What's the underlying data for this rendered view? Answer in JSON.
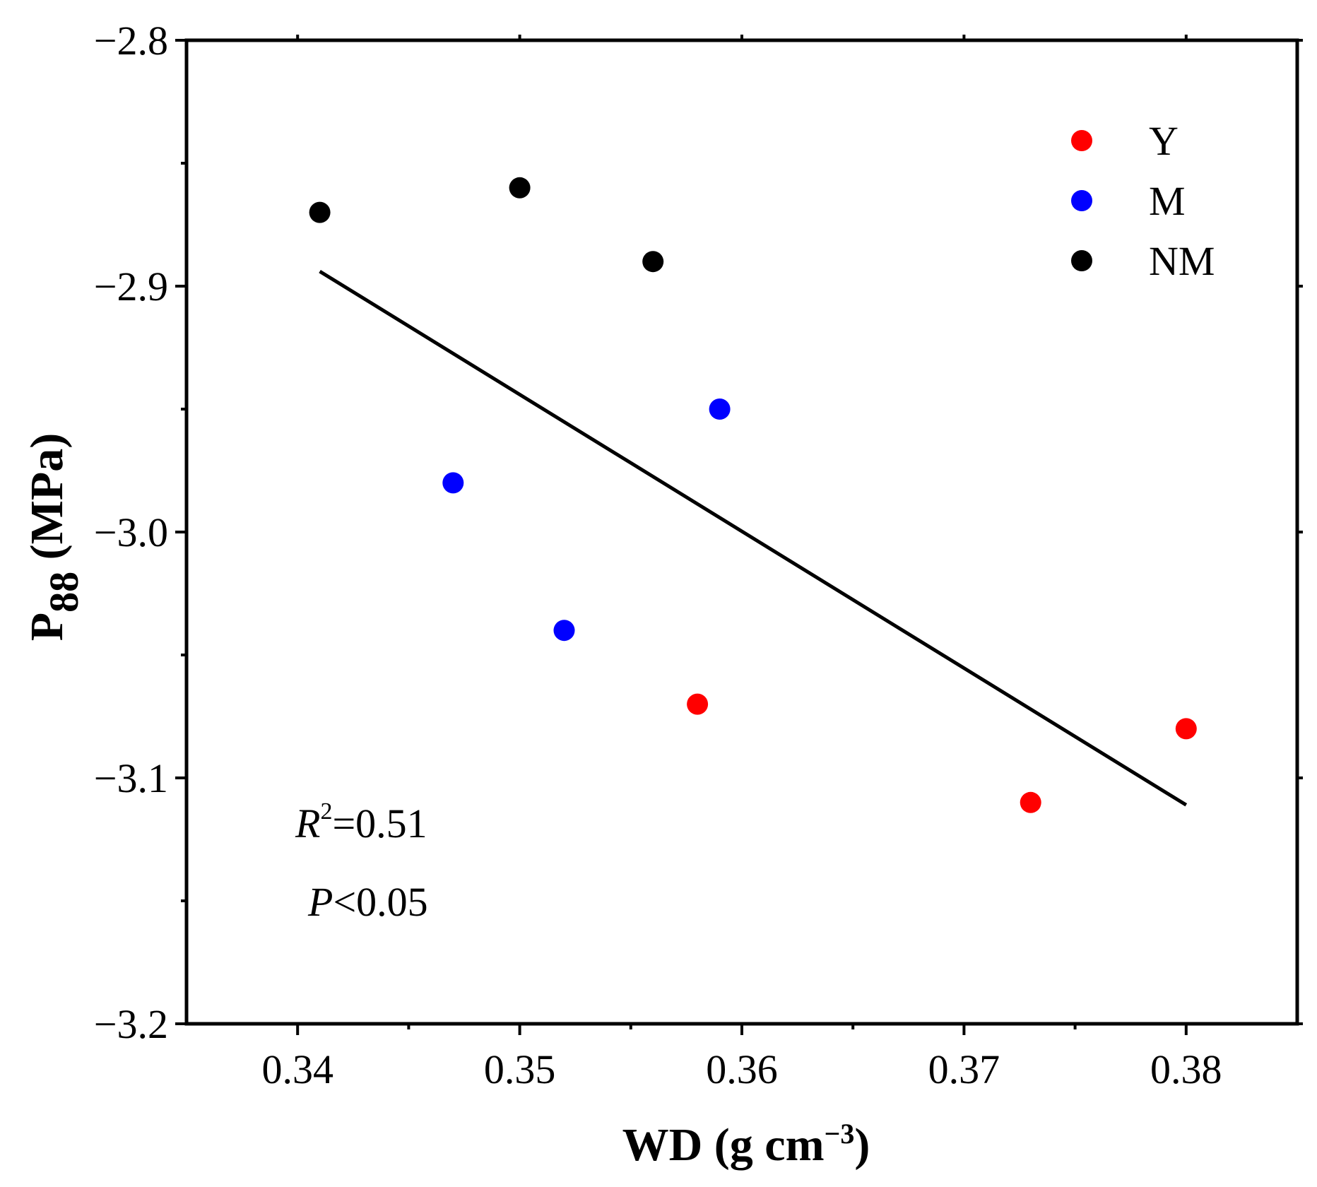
{
  "chart_data": {
    "type": "scatter",
    "title": "",
    "xlabel": {
      "main": "WD (g cm",
      "superscript": "−3",
      "close": ")"
    },
    "ylabel": {
      "main": "P",
      "subscript": "88",
      "unit": " (MPa)"
    },
    "xlim": [
      0.335,
      0.385
    ],
    "ylim": [
      -3.2,
      -2.8
    ],
    "xticks": [
      0.34,
      0.35,
      0.36,
      0.37,
      0.38
    ],
    "xtick_labels": [
      "0.34",
      "0.35",
      "0.36",
      "0.37",
      "0.38"
    ],
    "xminor_ticks": [
      0.345,
      0.355,
      0.365,
      0.375
    ],
    "yticks": [
      -2.8,
      -2.9,
      -3.0,
      -3.1,
      -3.2
    ],
    "ytick_labels": [
      "−2.8",
      "−2.9",
      "−3.0",
      "−3.1",
      "−3.2"
    ],
    "yminor_ticks": [
      -2.85,
      -2.95,
      -3.05,
      -3.15
    ],
    "grid": false,
    "legend_position": "top-right",
    "series": [
      {
        "name": "Y",
        "color": "#ff0000",
        "points": [
          {
            "x": 0.358,
            "y": -3.07
          },
          {
            "x": 0.373,
            "y": -3.11
          },
          {
            "x": 0.38,
            "y": -3.08
          }
        ]
      },
      {
        "name": "M",
        "color": "#0000ff",
        "points": [
          {
            "x": 0.347,
            "y": -2.98
          },
          {
            "x": 0.352,
            "y": -3.04
          },
          {
            "x": 0.359,
            "y": -2.95
          }
        ]
      },
      {
        "name": "NM",
        "color": "#000000",
        "points": [
          {
            "x": 0.341,
            "y": -2.87
          },
          {
            "x": 0.35,
            "y": -2.86
          },
          {
            "x": 0.356,
            "y": -2.89
          }
        ]
      }
    ],
    "fit_line": {
      "color": "#000000",
      "x": [
        0.341,
        0.38
      ],
      "y": [
        -2.894,
        -3.111
      ]
    },
    "annotations": {
      "r2": {
        "symbol": "R",
        "exponent": "2",
        "value": "=0.51"
      },
      "p": {
        "symbol": "P",
        "value": "<0.05"
      }
    }
  }
}
